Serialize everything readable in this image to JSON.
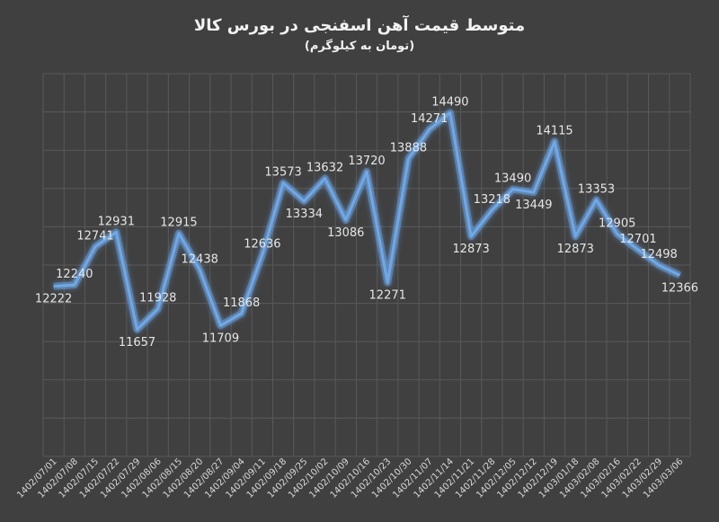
{
  "chart_data": {
    "type": "line",
    "title": "متوسط قیمت آهن اسفنجی در بورس کالا",
    "subtitle": "(تومان به کیلوگرم)",
    "xlabel": "",
    "ylabel": "",
    "grid": true,
    "legend": "none",
    "line_color": "#6FA8E8",
    "ylim": [
      10000,
      15000
    ],
    "categories": [
      "1402/07/01",
      "1402/07/08",
      "1402/07/15",
      "1402/07/22",
      "1402/07/29",
      "1402/08/06",
      "1402/08/15",
      "1402/08/20",
      "1402/08/27",
      "1402/09/04",
      "1402/09/11",
      "1402/09/18",
      "1402/09/25",
      "1402/10/02",
      "1402/10/09",
      "1402/10/16",
      "1402/10/23",
      "1402/10/30",
      "1402/11/07",
      "1402/11/14",
      "1402/11/21",
      "1402/11/28",
      "1402/12/05",
      "1402/12/12",
      "1402/12/19",
      "1403/01/18",
      "1403/02/08",
      "1403/02/16",
      "1403/02/22",
      "1403/02/29",
      "1403/03/06"
    ],
    "values": [
      12222,
      12240,
      12741,
      12931,
      11657,
      11928,
      12915,
      12438,
      11709,
      11868,
      12636,
      13573,
      13334,
      13632,
      13086,
      13720,
      12271,
      13888,
      14271,
      14490,
      12873,
      13218,
      13490,
      13449,
      14115,
      12873,
      13353,
      12905,
      12701,
      12498,
      12366
    ]
  }
}
